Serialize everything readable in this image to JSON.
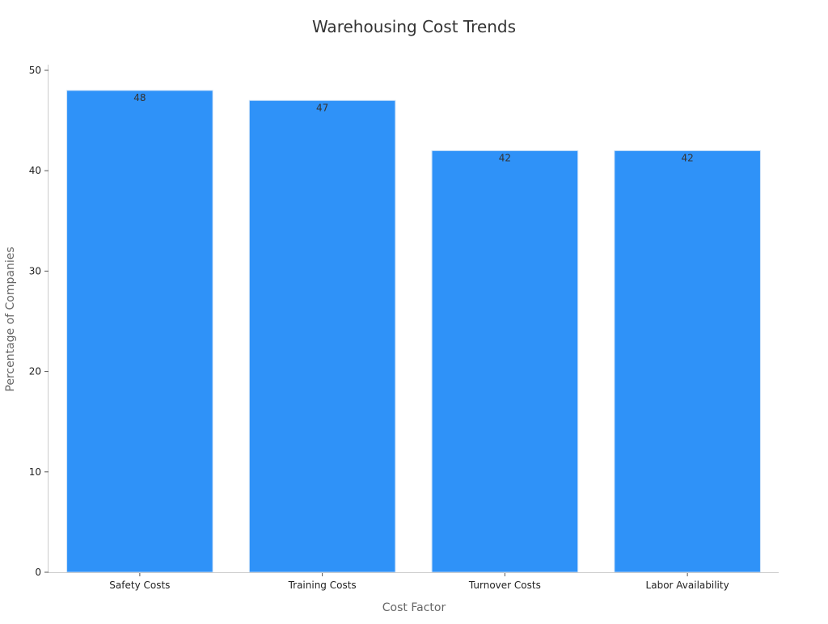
{
  "chart_data": {
    "type": "bar",
    "title": "Warehousing Cost Trends",
    "xlabel": "Cost Factor",
    "ylabel": "Percentage of Companies",
    "categories": [
      "Safety Costs",
      "Training Costs",
      "Turnover Costs",
      "Labor Availability"
    ],
    "values": [
      48,
      47,
      42,
      42
    ],
    "data_labels": [
      "48",
      "47",
      "42",
      "42"
    ],
    "ylim": [
      0,
      50
    ],
    "yticks": [
      0,
      10,
      20,
      30,
      40,
      50
    ],
    "ytick_labels": [
      "0",
      "10",
      "20",
      "30",
      "40",
      "50"
    ],
    "bar_color": "#2f92f8",
    "bar_edge_color": "#cfe3f7",
    "grid": false,
    "legend": "none"
  }
}
